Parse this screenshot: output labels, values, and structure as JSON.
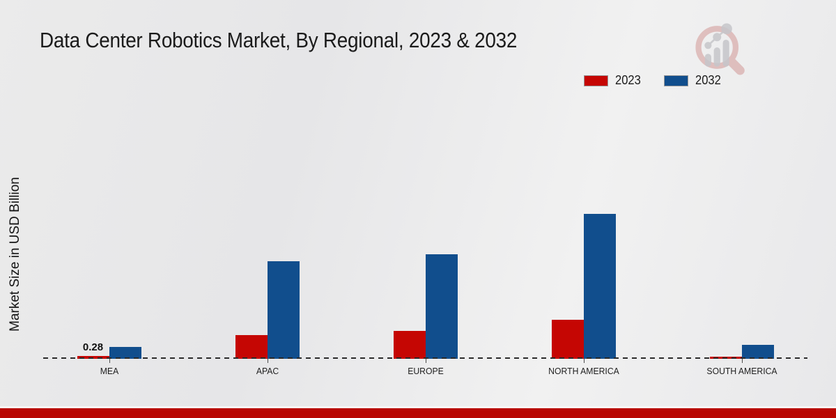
{
  "title": "Data Center Robotics Market, By Regional, 2023 & 2032",
  "ylabel": "Market Size in USD Billion",
  "colors": {
    "series_2023": "#c50603",
    "series_2032": "#114e8d",
    "footer_bar": "#b80702",
    "baseline": "#2a2a2a",
    "background": "#eaeaea"
  },
  "legend": {
    "position": "top-right",
    "items": [
      {
        "label": "2023",
        "color": "#c50603"
      },
      {
        "label": "2032",
        "color": "#114e8d"
      }
    ]
  },
  "logo_icon": "magnifier-bar-chart-logo",
  "chart_data": {
    "type": "bar",
    "title": "Data Center Robotics Market, By Regional, 2023 & 2032",
    "xlabel": "",
    "ylabel": "Market Size in USD Billion",
    "categories": [
      "MEA",
      "APAC",
      "EUROPE",
      "NORTH AMERICA",
      "SOUTH AMERICA"
    ],
    "series": [
      {
        "name": "2023",
        "color": "#c50603",
        "values": [
          0.28,
          2.4,
          2.8,
          3.9,
          0.22
        ]
      },
      {
        "name": "2032",
        "color": "#114e8d",
        "values": [
          1.2,
          9.8,
          10.5,
          14.6,
          1.4
        ]
      }
    ],
    "ylim": [
      0,
      15
    ],
    "grid": false,
    "axis_line": "dashed-baseline-only",
    "legend_position": "top-right",
    "data_labels": [
      {
        "category": "MEA",
        "series": "2023",
        "text": "0.28"
      }
    ]
  }
}
